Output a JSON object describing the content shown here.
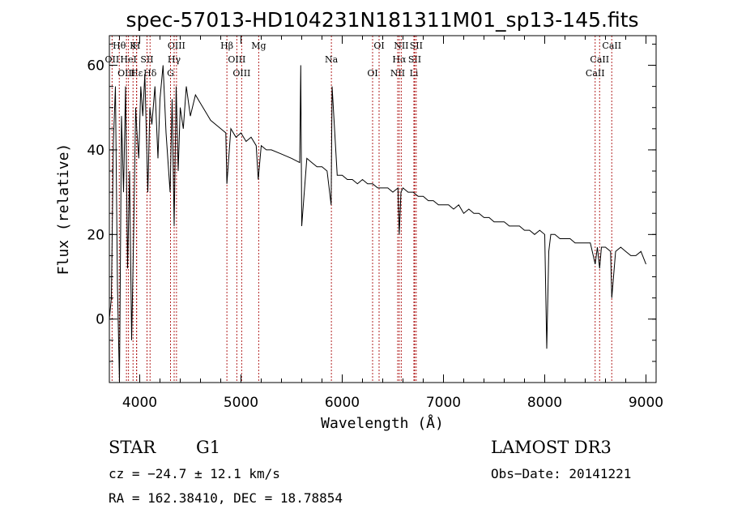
{
  "chart_data": {
    "type": "line",
    "title": "spec-57013-HD104231N181311M01_sp13-145.fits",
    "xlabel": "Wavelength (Å)",
    "ylabel": "Flux (relative)",
    "xlim": [
      3700,
      9100
    ],
    "ylim": [
      -15,
      67
    ],
    "xticks": [
      4000,
      5000,
      6000,
      7000,
      8000,
      9000
    ],
    "yticks": [
      0,
      20,
      40,
      60
    ],
    "series": [
      {
        "name": "flux",
        "x": [
          3700,
          3720,
          3740,
          3760,
          3780,
          3800,
          3820,
          3840,
          3860,
          3880,
          3900,
          3920,
          3940,
          3960,
          3970,
          3990,
          4010,
          4030,
          4050,
          4080,
          4100,
          4120,
          4150,
          4180,
          4200,
          4230,
          4260,
          4300,
          4320,
          4340,
          4360,
          4380,
          4400,
          4430,
          4460,
          4500,
          4550,
          4600,
          4650,
          4700,
          4750,
          4800,
          4850,
          4861,
          4900,
          4950,
          5000,
          5050,
          5100,
          5150,
          5170,
          5200,
          5250,
          5300,
          5400,
          5500,
          5580,
          5590,
          5600,
          5650,
          5700,
          5750,
          5800,
          5850,
          5890,
          5900,
          5950,
          6000,
          6050,
          6100,
          6150,
          6200,
          6250,
          6300,
          6350,
          6400,
          6450,
          6500,
          6550,
          6563,
          6580,
          6600,
          6650,
          6700,
          6750,
          6800,
          6850,
          6900,
          6950,
          7000,
          7050,
          7100,
          7150,
          7200,
          7250,
          7300,
          7350,
          7400,
          7450,
          7500,
          7550,
          7600,
          7650,
          7700,
          7750,
          7800,
          7850,
          7900,
          7950,
          8000,
          8020,
          8040,
          8060,
          8100,
          8150,
          8200,
          8250,
          8300,
          8350,
          8400,
          8450,
          8498,
          8520,
          8542,
          8560,
          8600,
          8650,
          8662,
          8700,
          8750,
          8800,
          8850,
          8900,
          8950,
          9000
        ],
        "values": [
          0,
          5,
          42,
          55,
          8,
          -15,
          48,
          30,
          55,
          12,
          35,
          -5,
          20,
          50,
          45,
          38,
          55,
          48,
          58,
          30,
          50,
          46,
          55,
          38,
          52,
          60,
          44,
          30,
          52,
          22,
          55,
          35,
          50,
          45,
          55,
          48,
          53,
          51,
          49,
          47,
          46,
          45,
          44,
          32,
          45,
          43,
          44,
          42,
          43,
          41,
          33,
          41,
          40,
          40,
          39,
          38,
          37,
          60,
          22,
          38,
          37,
          36,
          36,
          35,
          27,
          55,
          34,
          34,
          33,
          33,
          32,
          33,
          32,
          32,
          31,
          31,
          31,
          30,
          31,
          20,
          30,
          31,
          30,
          30,
          29,
          29,
          28,
          28,
          27,
          27,
          27,
          26,
          27,
          25,
          26,
          25,
          25,
          24,
          24,
          23,
          23,
          23,
          22,
          22,
          22,
          21,
          21,
          20,
          21,
          20,
          -7,
          16,
          20,
          20,
          19,
          19,
          19,
          18,
          18,
          18,
          18,
          13,
          17,
          12,
          17,
          17,
          16,
          5,
          16,
          17,
          16,
          15,
          15,
          16,
          13
        ]
      }
    ],
    "spectral_lines": [
      {
        "name": "Hθ",
        "x": 3798
      },
      {
        "name": "OII",
        "x": 3727
      },
      {
        "name": "OIII",
        "x": 3869
      },
      {
        "name": "K",
        "x": 3934
      },
      {
        "name": "HeI",
        "x": 3889
      },
      {
        "name": "Hε",
        "x": 3970
      },
      {
        "name": "H",
        "x": 3968
      },
      {
        "name": "SII",
        "x": 4072
      },
      {
        "name": "Hδ",
        "x": 4102
      },
      {
        "name": "OIII",
        "x": 4363
      },
      {
        "name": "Hγ",
        "x": 4340
      },
      {
        "name": "G",
        "x": 4304
      },
      {
        "name": "Hβ",
        "x": 4861
      },
      {
        "name": "OIII",
        "x": 4959
      },
      {
        "name": "OIII",
        "x": 5007
      },
      {
        "name": "Mg",
        "x": 5175
      },
      {
        "name": "Na",
        "x": 5893
      },
      {
        "name": "OI",
        "x": 6300
      },
      {
        "name": "OI",
        "x": 6364
      },
      {
        "name": "Hα",
        "x": 6563
      },
      {
        "name": "NII",
        "x": 6548
      },
      {
        "name": "NII",
        "x": 6583
      },
      {
        "name": "SII",
        "x": 6716
      },
      {
        "name": "Li",
        "x": 6708
      },
      {
        "name": "SII",
        "x": 6731
      },
      {
        "name": "CaII",
        "x": 8542
      },
      {
        "name": "CaII",
        "x": 8498
      },
      {
        "name": "CaII",
        "x": 8662
      }
    ]
  },
  "info": {
    "class": "STAR",
    "subclass": "G1",
    "survey": "LAMOST DR3",
    "cz": "cz = −24.7 ± 12.1 km/s",
    "obs_date": "Obs−Date: 20141221",
    "coords": "RA = 162.38410, DEC =  18.78854"
  },
  "colors": {
    "axis": "#000000",
    "spectrum": "#000000",
    "line_marker": "#b22222"
  }
}
